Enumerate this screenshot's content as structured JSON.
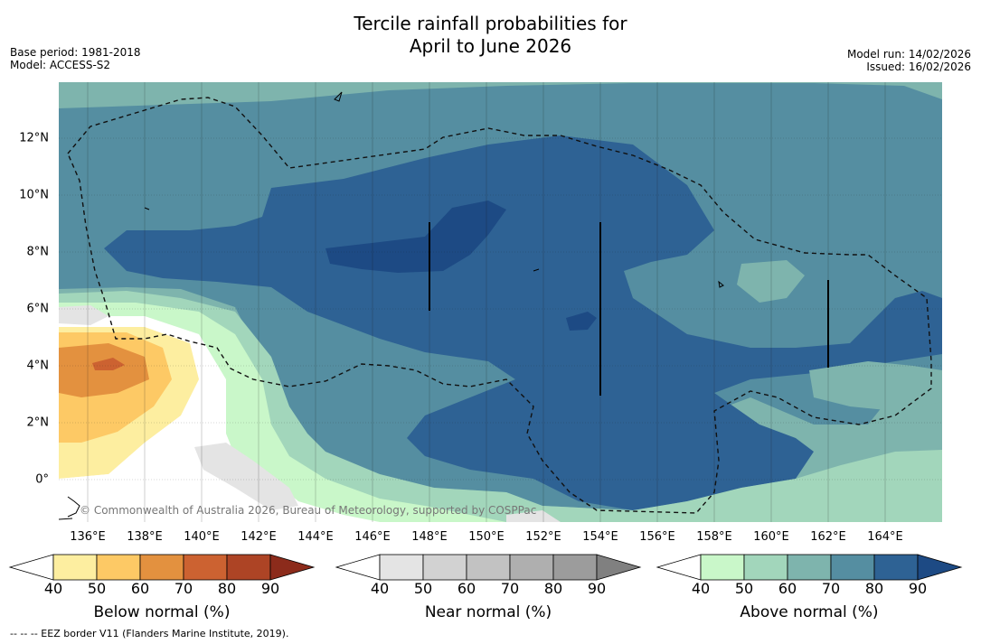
{
  "title_line1": "Tercile rainfall probabilities for",
  "title_line2": "April to June 2026",
  "meta_left": [
    "Base period: 1981-2018",
    "Model: ACCESS-S2"
  ],
  "meta_right": [
    "Model run: 14/02/2026",
    "Issued: 16/02/2026"
  ],
  "x_ticks": [
    "136°E",
    "138°E",
    "140°E",
    "142°E",
    "144°E",
    "146°E",
    "148°E",
    "150°E",
    "152°E",
    "154°E",
    "156°E",
    "158°E",
    "160°E",
    "162°E",
    "164°E"
  ],
  "y_ticks": [
    "12°N",
    "10°N",
    "8°N",
    "6°N",
    "4°N",
    "2°N",
    "0°"
  ],
  "copyright": "© Commonwealth of Australia 2026, Bureau of Meteorology, supported by COSPPac",
  "colorbars": [
    {
      "title": "Below normal (%)",
      "ticks": [
        "40",
        "50",
        "60",
        "70",
        "80",
        "90"
      ],
      "colors": [
        "#ffffff",
        "#fdeea0",
        "#fdc965",
        "#e3913f",
        "#cc6231",
        "#ad4425",
        "#8c2b1b"
      ]
    },
    {
      "title": "Near normal (%)",
      "ticks": [
        "40",
        "50",
        "60",
        "70",
        "80",
        "90"
      ],
      "colors": [
        "#ffffff",
        "#e4e4e4",
        "#d2d2d2",
        "#c2c2c2",
        "#afafaf",
        "#9c9c9c",
        "#808080"
      ]
    },
    {
      "title": "Above normal (%)",
      "ticks": [
        "40",
        "50",
        "60",
        "70",
        "80",
        "90"
      ],
      "colors": [
        "#ffffff",
        "#c9f7c9",
        "#a2d6bb",
        "#7eb4ad",
        "#558ea1",
        "#2e6294",
        "#1d4a84"
      ]
    }
  ],
  "footnote": "--  --  -- EEZ border V11 (Flanders Marine Institute, 2019)."
}
